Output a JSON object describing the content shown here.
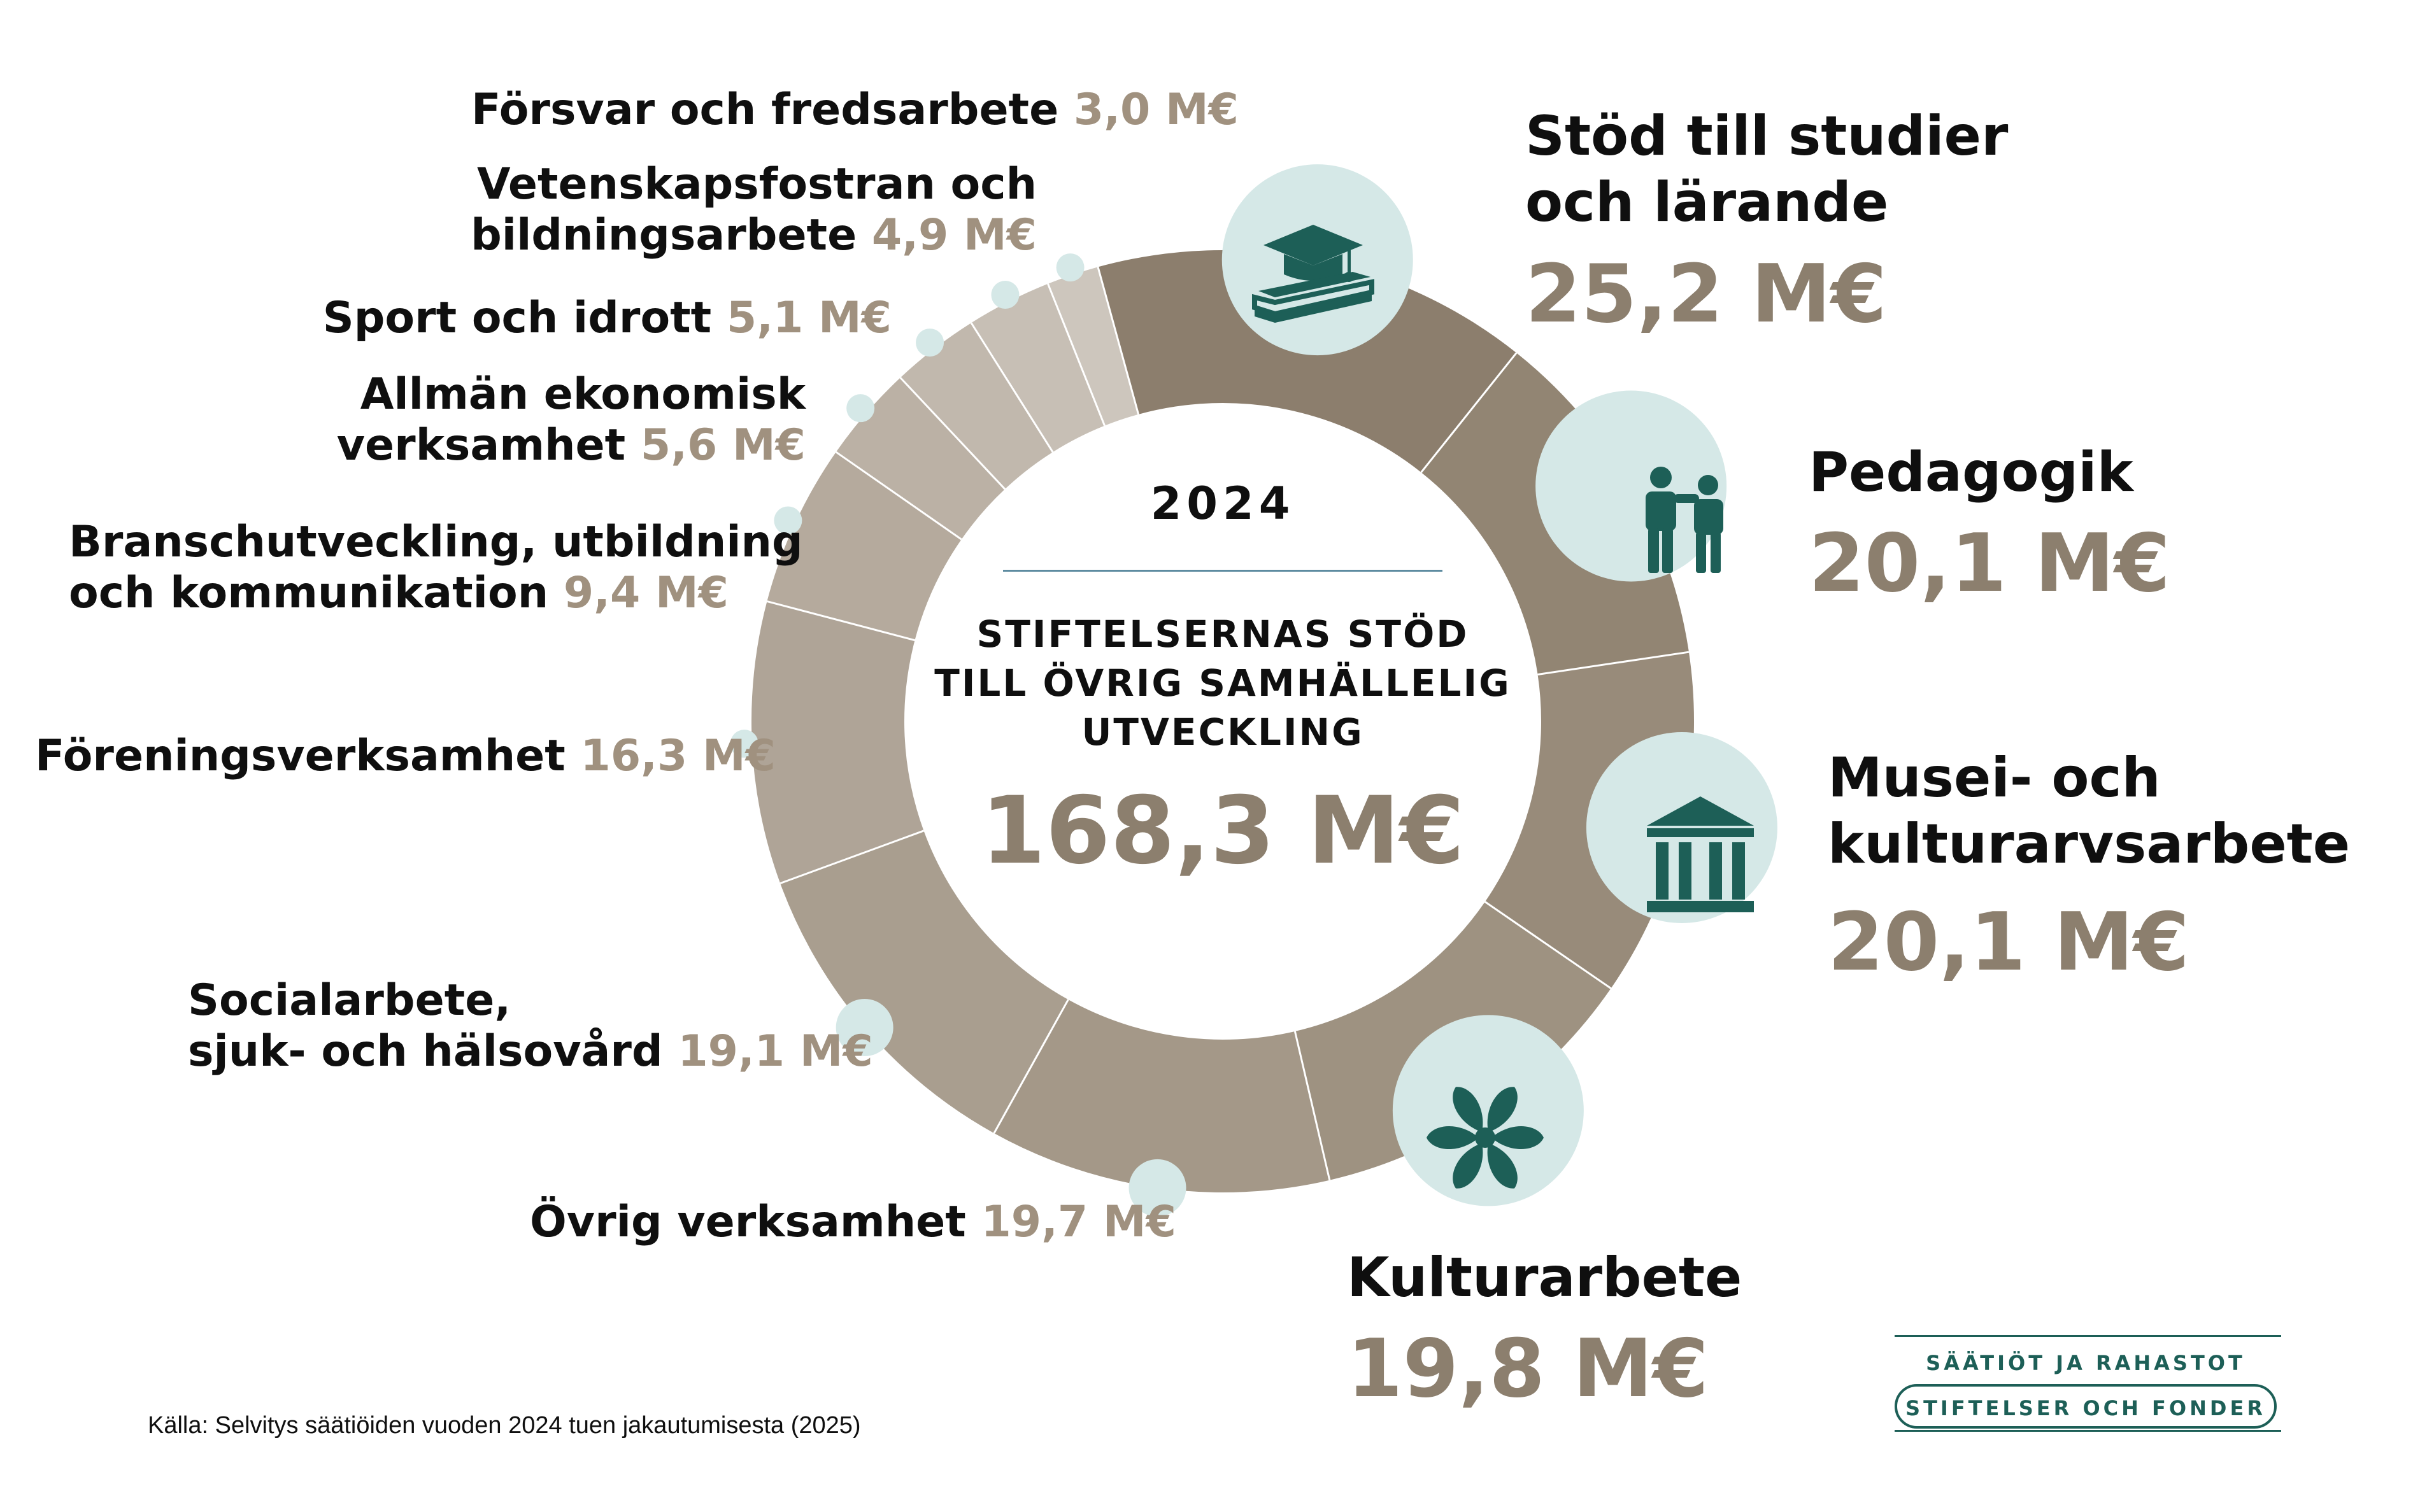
{
  "chart_data": {
    "type": "pie",
    "center": {
      "year": "2024",
      "title_lines": [
        "STIFTELSERNAS STÖD",
        "TILL ÖVRIG SAMHÄLLELIG",
        "UTVECKLING"
      ],
      "total": "168,3 M€"
    },
    "unit": "M€",
    "slices": [
      {
        "name_lines": [
          "Stöd till studier",
          "och lärande"
        ],
        "value": 25.2,
        "value_label": "25,2 M€",
        "color": "#8c7e6d",
        "icon": "graduation-cap-books-icon"
      },
      {
        "name_lines": [
          "Pedagogik"
        ],
        "value": 20.1,
        "value_label": "20,1 M€",
        "color": "#928573",
        "icon": "teacher-student-icon"
      },
      {
        "name_lines": [
          "Musei- och",
          "kulturarvsarbete"
        ],
        "value": 20.1,
        "value_label": "20,1 M€",
        "color": "#988b7a",
        "icon": "museum-building-icon"
      },
      {
        "name_lines": [
          "Kulturarbete"
        ],
        "value": 19.8,
        "value_label": "19,8 M€",
        "color": "#9e9281",
        "icon": "flower-icon"
      },
      {
        "name_lines": [
          "Övrig verksamhet"
        ],
        "value": 19.7,
        "value_label": "19,7 M€",
        "color": "#a49888"
      },
      {
        "name_lines": [
          "Socialarbete,",
          "sjuk- och hälsovård"
        ],
        "value": 19.1,
        "value_label": "19,1 M€",
        "color": "#a99e8f"
      },
      {
        "name_lines": [
          "Föreningsverksamhet"
        ],
        "value": 16.3,
        "value_label": "16,3 M€",
        "color": "#afa497"
      },
      {
        "name_lines": [
          "Branschutveckling, utbildning",
          "och kommunikation"
        ],
        "value": 9.4,
        "value_label": "9,4 M€",
        "color": "#b5aa9d"
      },
      {
        "name_lines": [
          "Allmän ekonomisk",
          "verksamhet"
        ],
        "value": 5.6,
        "value_label": "5,6 M€",
        "color": "#bbb1a5"
      },
      {
        "name_lines": [
          "Sport och idrott"
        ],
        "value": 5.1,
        "value_label": "5,1 M€",
        "color": "#c1b8ad"
      },
      {
        "name_lines": [
          "Vetenskapsfostran och",
          "bildningsarbete"
        ],
        "value": 4.9,
        "value_label": "4,9 M€",
        "color": "#c7bfb5"
      },
      {
        "name_lines": [
          "Försvar och fredsarbete"
        ],
        "value": 3.0,
        "value_label": "3,0 M€",
        "color": "#cdc6bd"
      }
    ]
  },
  "colors": {
    "dot": "#d5e8e7",
    "icon": "#1d5f57",
    "value_text": "#8c7f6e",
    "small_value_text": "#a0917f"
  },
  "source": "Källa: Selvitys säätiöiden vuoden 2024 tuen jakautumisesta (2025)",
  "logo": {
    "line1": "SÄÄTIÖT JA RAHASTOT",
    "line2": "STIFTELSER OCH FONDER"
  }
}
